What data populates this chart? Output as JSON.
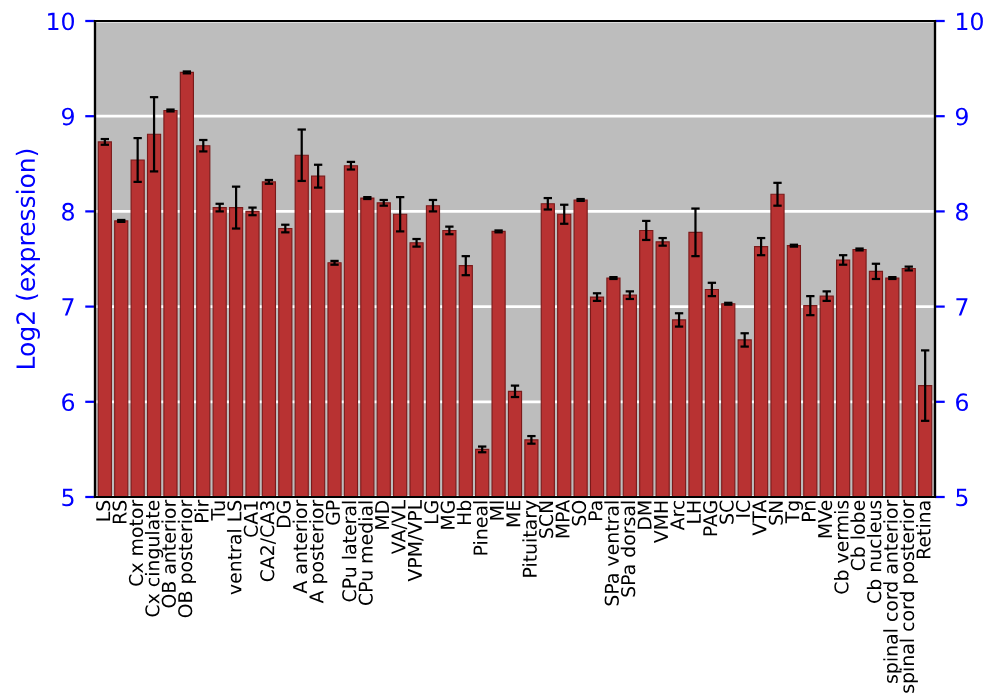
{
  "chart_data": {
    "type": "bar",
    "ylabel": "Log2 (expression)",
    "categories": [
      "LS",
      "RS",
      "Cx motor",
      "Cx cingulate",
      "OB anterior",
      "OB posterior",
      "Pir",
      "Tu",
      "ventral LS",
      "CA1",
      "CA2/CA3",
      "DG",
      "A anterior",
      "A posterior",
      "GP",
      "CPu lateral",
      "CPu medial",
      "MD",
      "VA/VL",
      "VPM/VPL",
      "LG",
      "MG",
      "Hb",
      "Pineal",
      "Ml",
      "ME",
      "Pituitary",
      "SCN",
      "MPA",
      "SO",
      "Pa",
      "SPa ventral",
      "SPa dorsal",
      "DM",
      "VMH",
      "Arc",
      "LH",
      "PAG",
      "SC",
      "IC",
      "VTA",
      "SN",
      "Tg",
      "Pn",
      "MVe",
      "Cb vermis",
      "Cb lobe",
      "Cb nucleus",
      "spinal cord anterior",
      "spinal cord posterior",
      "Retina"
    ],
    "values": [
      8.73,
      7.9,
      8.54,
      8.81,
      9.06,
      9.46,
      8.69,
      8.04,
      8.04,
      8.0,
      8.31,
      7.82,
      8.59,
      8.37,
      7.46,
      8.48,
      8.14,
      8.09,
      7.97,
      7.67,
      8.06,
      7.8,
      7.43,
      5.5,
      7.79,
      6.11,
      5.6,
      8.08,
      7.97,
      8.12,
      7.1,
      7.3,
      7.12,
      7.8,
      7.68,
      6.86,
      7.78,
      7.18,
      7.03,
      6.65,
      7.63,
      8.18,
      7.64,
      7.01,
      7.11,
      7.49,
      7.6,
      7.37,
      7.3,
      7.4,
      6.17
    ],
    "errors": [
      0.03,
      0.01,
      0.23,
      0.39,
      0.01,
      0.01,
      0.06,
      0.04,
      0.22,
      0.04,
      0.02,
      0.04,
      0.27,
      0.12,
      0.02,
      0.04,
      0.01,
      0.03,
      0.18,
      0.04,
      0.06,
      0.04,
      0.1,
      0.03,
      0.01,
      0.06,
      0.04,
      0.06,
      0.1,
      0.01,
      0.04,
      0.01,
      0.04,
      0.1,
      0.04,
      0.07,
      0.25,
      0.07,
      0.01,
      0.07,
      0.09,
      0.12,
      0.01,
      0.1,
      0.05,
      0.05,
      0.01,
      0.08,
      0.01,
      0.02,
      0.37
    ],
    "color": "#b83232",
    "ylim": [
      5,
      10
    ],
    "yticks": [
      5,
      6,
      7,
      8,
      9,
      10
    ],
    "y2lim": [
      5,
      10
    ],
    "y2ticks": [
      5,
      6,
      7,
      8,
      9,
      10
    ],
    "grid": "y"
  }
}
